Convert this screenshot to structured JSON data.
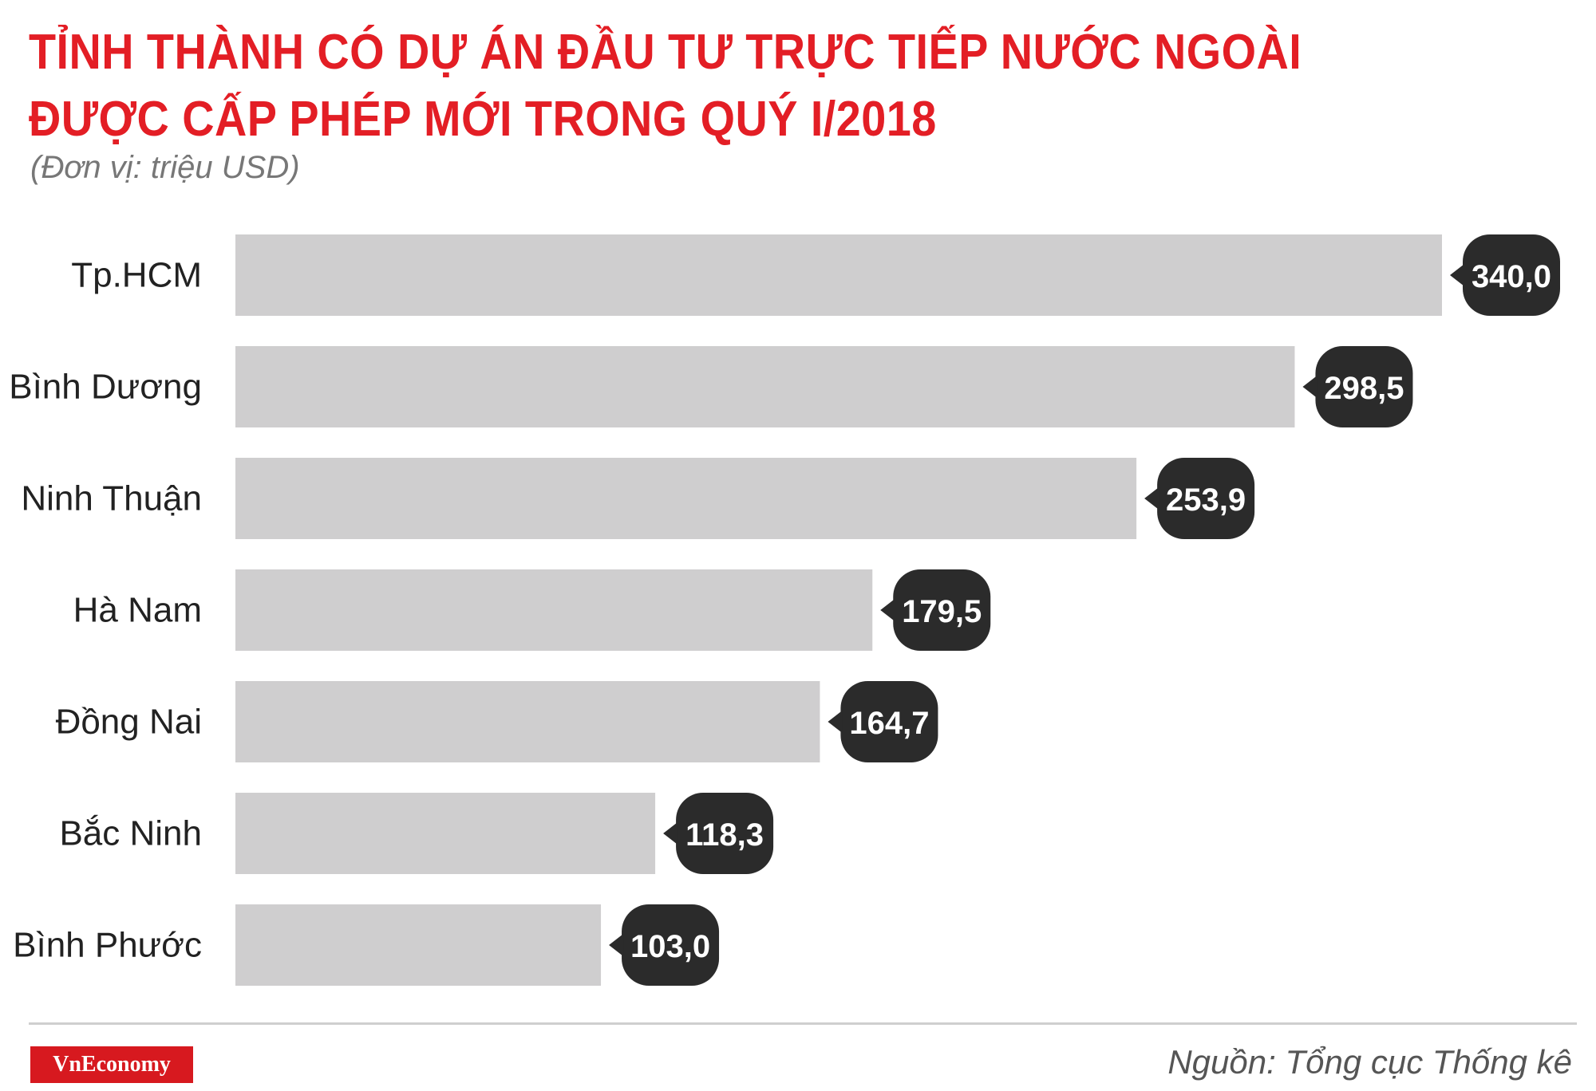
{
  "header": {
    "title_line1": "TỈNH THÀNH CÓ DỰ ÁN ĐẦU TƯ TRỰC TIẾP NƯỚC NGOÀI",
    "title_line2": "ĐƯỢC CẤP PHÉP MỚI TRONG QUÝ I/2018",
    "unit": "(Đơn vị: triệu USD)"
  },
  "colors": {
    "title": "#e31e25",
    "bar": "#cfcecf",
    "label_bubble": "#2b2b2b",
    "logo_bg": "#d7191f"
  },
  "chart_data": {
    "type": "bar",
    "orientation": "horizontal",
    "categories": [
      "Tp.HCM",
      "Bình Dương",
      "Ninh Thuận",
      "Hà Nam",
      "Đồng Nai",
      "Bắc Ninh",
      "Bình Phước"
    ],
    "values": [
      340.0,
      298.5,
      253.9,
      179.5,
      164.7,
      118.3,
      103.0
    ],
    "value_labels": [
      "340,0",
      "298,5",
      "253,9",
      "179,5",
      "164,7",
      "118,3",
      "103,0"
    ],
    "xlim": [
      0,
      340
    ],
    "grid": false
  },
  "footer": {
    "logo": "VnEconomy",
    "source": "Nguồn: Tổng cục Thống kê"
  }
}
